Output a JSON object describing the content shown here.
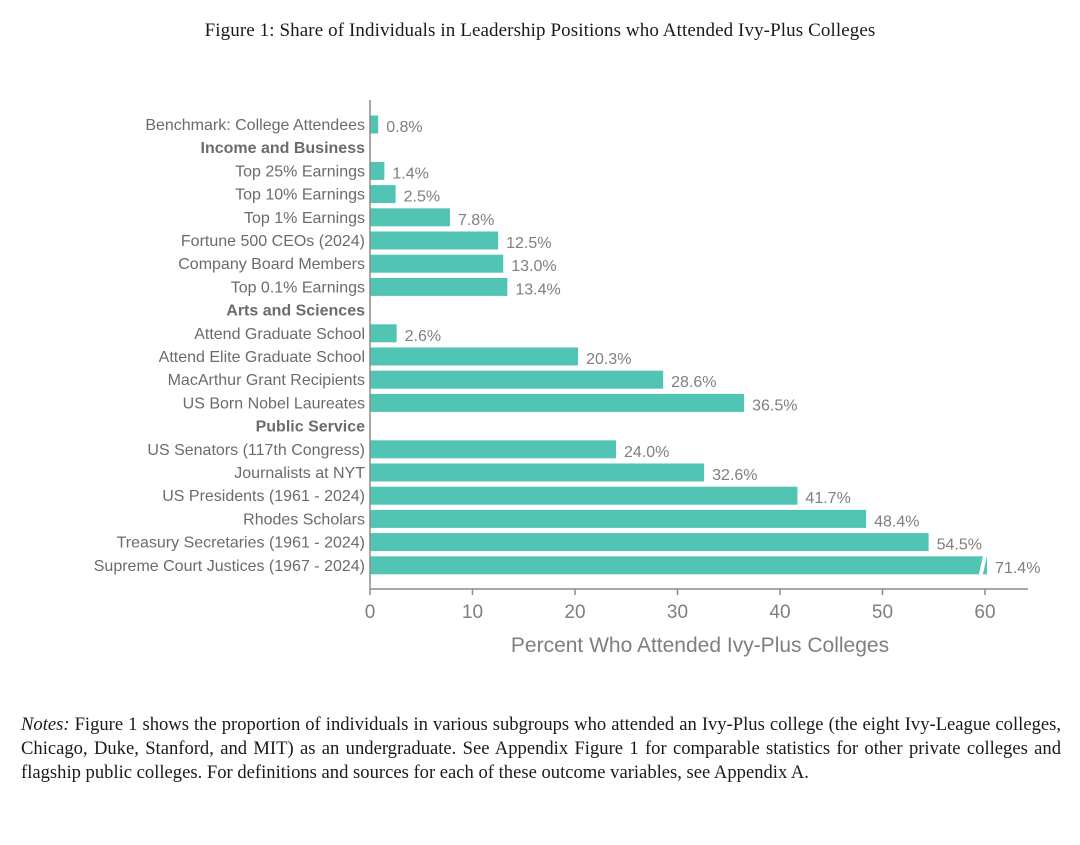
{
  "figure": {
    "caption": "Figure 1: Share of Individuals in Leadership Positions who Attended Ivy-Plus Colleges"
  },
  "chart_data": {
    "type": "bar",
    "orientation": "horizontal",
    "bar_color": "#52c4b4",
    "xlabel": "Percent Who Attended Ivy-Plus Colleges",
    "xlim": [
      0,
      64
    ],
    "xticks": [
      0,
      10,
      20,
      30,
      40,
      50,
      60
    ],
    "axis_break_on_last_bar": true,
    "rows": [
      {
        "label": "Benchmark: College Attendees",
        "value": 0.8,
        "value_label": "0.8%",
        "section": false
      },
      {
        "label": "Income and Business",
        "section": true
      },
      {
        "label": "Top 25% Earnings",
        "value": 1.4,
        "value_label": "1.4%",
        "section": false
      },
      {
        "label": "Top 10% Earnings",
        "value": 2.5,
        "value_label": "2.5%",
        "section": false
      },
      {
        "label": "Top 1% Earnings",
        "value": 7.8,
        "value_label": "7.8%",
        "section": false
      },
      {
        "label": "Fortune 500 CEOs (2024)",
        "value": 12.5,
        "value_label": "12.5%",
        "section": false
      },
      {
        "label": "Company Board Members",
        "value": 13.0,
        "value_label": "13.0%",
        "section": false
      },
      {
        "label": "Top 0.1% Earnings",
        "value": 13.4,
        "value_label": "13.4%",
        "section": false
      },
      {
        "label": "Arts and Sciences",
        "section": true
      },
      {
        "label": "Attend Graduate School",
        "value": 2.6,
        "value_label": "2.6%",
        "section": false
      },
      {
        "label": "Attend Elite Graduate School",
        "value": 20.3,
        "value_label": "20.3%",
        "section": false
      },
      {
        "label": "MacArthur Grant Recipients",
        "value": 28.6,
        "value_label": "28.6%",
        "section": false
      },
      {
        "label": "US Born Nobel Laureates",
        "value": 36.5,
        "value_label": "36.5%",
        "section": false
      },
      {
        "label": "Public Service",
        "section": true
      },
      {
        "label": "US Senators (117th Congress)",
        "value": 24.0,
        "value_label": "24.0%",
        "section": false
      },
      {
        "label": "Journalists at NYT",
        "value": 32.6,
        "value_label": "32.6%",
        "section": false
      },
      {
        "label": "US Presidents (1961 - 2024)",
        "value": 41.7,
        "value_label": "41.7%",
        "section": false
      },
      {
        "label": "Rhodes Scholars",
        "value": 48.4,
        "value_label": "48.4%",
        "section": false
      },
      {
        "label": "Treasury Secretaries (1961 - 2024)",
        "value": 54.5,
        "value_label": "54.5%",
        "section": false
      },
      {
        "label": "Supreme Court Justices (1967 - 2024)",
        "value": 71.4,
        "value_label": "71.4%",
        "section": false
      }
    ]
  },
  "notes": {
    "label": "Notes:",
    "text": " Figure 1 shows the proportion of individuals in various subgroups who attended an Ivy-Plus college (the eight Ivy-League colleges, Chicago, Duke, Stanford, and MIT) as an undergraduate. See Appendix Figure 1 for comparable statistics for other private colleges and flagship public colleges. For definitions and sources for each of these outcome variables, see Appendix A."
  }
}
